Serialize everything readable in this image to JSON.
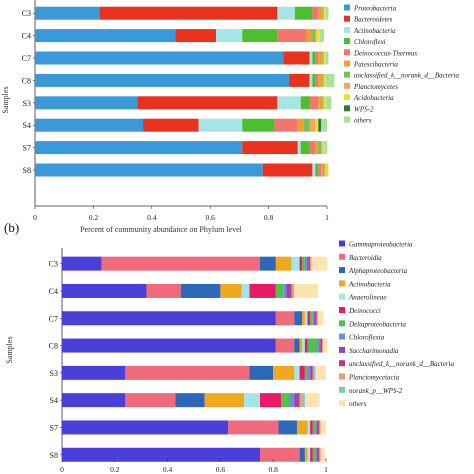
{
  "panels": [
    {
      "label": "",
      "chart_data": {
        "type": "bar",
        "orientation": "horizontal",
        "stacked": true,
        "title": "",
        "xlabel": "Percent of community abundance on Phylum level",
        "ylabel": "Samples",
        "xlim": [
          0,
          1
        ],
        "ticks": [
          "0",
          "0.2",
          "0.4",
          "0.6",
          "0.8",
          "1"
        ],
        "grid": false,
        "legend_position": "right",
        "categories": [
          "C3",
          "C4",
          "C7",
          "C8",
          "S3",
          "S4",
          "S7",
          "S8"
        ],
        "series": [
          {
            "name": "Proteobacteria",
            "color": "#3a9ad9",
            "values": [
              0.22,
              0.48,
              0.85,
              0.87,
              0.35,
              0.37,
              0.71,
              0.78
            ]
          },
          {
            "name": "Bacteroidetes",
            "color": "#e8321e",
            "values": [
              0.61,
              0.14,
              0.09,
              0.07,
              0.48,
              0.19,
              0.19,
              0.17
            ]
          },
          {
            "name": "Actinobacteria",
            "color": "#a6e5e3",
            "values": [
              0.06,
              0.09,
              0.01,
              0.01,
              0.08,
              0.15,
              0.01,
              0.01
            ]
          },
          {
            "name": "Chloroflexi",
            "color": "#4cbf2e",
            "values": [
              0.06,
              0.12,
              0.01,
              0.01,
              0.03,
              0.11,
              0.03,
              0.01
            ]
          },
          {
            "name": "Deinococcus-Thermus",
            "color": "#f0766f",
            "values": [
              0.02,
              0.1,
              0.01,
              0.01,
              0.03,
              0.08,
              0.02,
              0.01
            ]
          },
          {
            "name": "Patescibacteria",
            "color": "#f0a030",
            "values": [
              0.01,
              0.02,
              0.01,
              0.01,
              0.01,
              0.02,
              0.01,
              0.005
            ]
          },
          {
            "name": "unclassified_k__norank_d__Bacteria",
            "color": "#74c05a",
            "values": [
              0.005,
              0.01,
              0.005,
              0.005,
              0.005,
              0.02,
              0.01,
              0.005
            ]
          },
          {
            "name": "Planctomycetes",
            "color": "#f5a45f",
            "values": [
              0.005,
              0.005,
              0.005,
              0.005,
              0.005,
              0.02,
              0.005,
              0.005
            ]
          },
          {
            "name": "Acidobacteria",
            "color": "#f5e12a",
            "values": [
              0.005,
              0.01,
              0.005,
              0.005,
              0.005,
              0.01,
              0.005,
              0.005
            ]
          },
          {
            "name": "WPS-2",
            "color": "#2b7a3c",
            "values": [
              0.0,
              0.0,
              0.0,
              0.0,
              0.0,
              0.01,
              0.0,
              0.0
            ]
          },
          {
            "name": "others",
            "color": "#a8e39a",
            "values": [
              0.01,
              0.015,
              0.01,
              0.03,
              0.02,
              0.02,
              0.01,
              0.005
            ]
          }
        ]
      }
    },
    {
      "label": "(b)",
      "chart_data": {
        "type": "bar",
        "orientation": "horizontal",
        "stacked": true,
        "title": "",
        "xlabel": "",
        "ylabel": "Samples",
        "xlim": [
          0,
          1
        ],
        "ticks": [
          "0",
          "0.2",
          "0.4",
          "0.6",
          "0.8",
          "1"
        ],
        "grid": false,
        "legend_position": "right",
        "categories": [
          "C3",
          "C4",
          "C7",
          "C8",
          "S3",
          "S4",
          "S7",
          "S8"
        ],
        "series": [
          {
            "name": "Gammaproteobacteria",
            "color": "#4a3fd8",
            "values": [
              0.15,
              0.32,
              0.81,
              0.81,
              0.24,
              0.24,
              0.63,
              0.75
            ]
          },
          {
            "name": "Bacteroidia",
            "color": "#f06a7e",
            "values": [
              0.6,
              0.13,
              0.07,
              0.07,
              0.47,
              0.19,
              0.19,
              0.15
            ]
          },
          {
            "name": "Alphaproteobacteria",
            "color": "#2d67b7",
            "values": [
              0.06,
              0.15,
              0.03,
              0.02,
              0.09,
              0.11,
              0.07,
              0.02
            ]
          },
          {
            "name": "Actinobacteria",
            "color": "#f0a91f",
            "values": [
              0.06,
              0.08,
              0.01,
              0.01,
              0.08,
              0.15,
              0.04,
              0.01
            ]
          },
          {
            "name": "Anaerolineae",
            "color": "#a3e6ea",
            "values": [
              0.03,
              0.03,
              0.01,
              0.01,
              0.02,
              0.06,
              0.01,
              0.01
            ]
          },
          {
            "name": "Deinococci",
            "color": "#e81a63",
            "values": [
              0.01,
              0.1,
              0.01,
              0.01,
              0.02,
              0.08,
              0.01,
              0.01
            ]
          },
          {
            "name": "Deltaproteobacteria",
            "color": "#52c050",
            "values": [
              0.01,
              0.03,
              0.01,
              0.04,
              0.01,
              0.03,
              0.01,
              0.01
            ]
          },
          {
            "name": "Chloroflexia",
            "color": "#6e8ed8",
            "values": [
              0.01,
              0.01,
              0.005,
              0.005,
              0.01,
              0.02,
              0.005,
              0.005
            ]
          },
          {
            "name": "Saccharimonadia",
            "color": "#9040c8",
            "values": [
              0.005,
              0.01,
              0.005,
              0.005,
              0.005,
              0.01,
              0.005,
              0.005
            ]
          },
          {
            "name": "unclassified_k__norank_d__Bacteria",
            "color": "#c23b78",
            "values": [
              0.005,
              0.01,
              0.005,
              0.005,
              0.005,
              0.01,
              0.005,
              0.005
            ]
          },
          {
            "name": "Planctomycetacia",
            "color": "#f09c68",
            "values": [
              0.005,
              0.005,
              0.005,
              0.005,
              0.005,
              0.01,
              0.005,
              0.005
            ]
          },
          {
            "name": "norank_p__WPS-2",
            "color": "#7ac7c7",
            "values": [
              0.0,
              0.005,
              0.0,
              0.0,
              0.005,
              0.01,
              0.0,
              0.0
            ]
          },
          {
            "name": "others",
            "color": "#fde3b0",
            "values": [
              0.06,
              0.09,
              0.02,
              0.015,
              0.04,
              0.055,
              0.02,
              0.015
            ]
          }
        ]
      }
    }
  ]
}
